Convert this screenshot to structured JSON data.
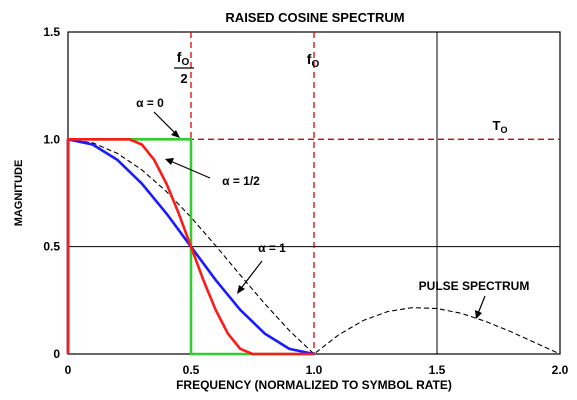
{
  "chart_data": {
    "type": "line",
    "title": "RAISED COSINE SPECTRUM",
    "xlabel": "FREQUENCY (NORMALIZED TO SYMBOL RATE)",
    "ylabel": "MAGNITUDE",
    "xlim": [
      0,
      2.0
    ],
    "ylim": [
      0,
      1.5
    ],
    "x_ticks": [
      "0",
      "0.5",
      "1.0",
      "1.5",
      "2.0"
    ],
    "y_ticks": [
      "0",
      "0.5",
      "1.0",
      "1.5"
    ],
    "grid": true,
    "series": [
      {
        "name": "α = 0",
        "color": "#33cc33",
        "style": "solid",
        "x": [
          0,
          0,
          0.5,
          0.5,
          1.0
        ],
        "y": [
          0,
          1.0,
          1.0,
          0,
          0
        ]
      },
      {
        "name": "α = 1/2",
        "color": "#ff1a1a",
        "style": "solid",
        "x": [
          0,
          0,
          0.25,
          0.3,
          0.35,
          0.4,
          0.45,
          0.5,
          0.55,
          0.6,
          0.65,
          0.7,
          0.75,
          1.0
        ],
        "y": [
          0,
          1.0,
          1.0,
          0.976,
          0.905,
          0.794,
          0.655,
          0.5,
          0.345,
          0.206,
          0.095,
          0.024,
          0,
          0
        ]
      },
      {
        "name": "α = 1",
        "color": "#1a1aff",
        "style": "solid",
        "x": [
          0,
          0,
          0.1,
          0.2,
          0.3,
          0.4,
          0.5,
          0.6,
          0.7,
          0.8,
          0.9,
          1.0
        ],
        "y": [
          0,
          1.0,
          0.976,
          0.905,
          0.794,
          0.655,
          0.5,
          0.345,
          0.206,
          0.095,
          0.024,
          0
        ]
      },
      {
        "name": "PULSE SPECTRUM",
        "color": "#000000",
        "style": "dashed",
        "x": [
          0,
          0.1,
          0.2,
          0.3,
          0.4,
          0.5,
          0.6,
          0.7,
          0.8,
          0.9,
          1.0,
          1.1,
          1.2,
          1.3,
          1.4,
          1.5,
          1.6,
          1.7,
          1.8,
          1.9,
          2.0
        ],
        "y": [
          1.0,
          0.984,
          0.935,
          0.858,
          0.757,
          0.637,
          0.505,
          0.368,
          0.234,
          0.109,
          0,
          0.089,
          0.156,
          0.198,
          0.216,
          0.212,
          0.189,
          0.151,
          0.104,
          0.052,
          0
        ]
      }
    ],
    "reference_lines": [
      {
        "axis": "x",
        "value": 0.5,
        "label_top": "fO",
        "label_bottom": "2",
        "color": "#dd0000"
      },
      {
        "axis": "x",
        "value": 1.0,
        "label": "fO",
        "color": "#dd0000"
      },
      {
        "axis": "y",
        "value": 1.0,
        "label": "TO",
        "color": "#dd0000"
      }
    ]
  }
}
